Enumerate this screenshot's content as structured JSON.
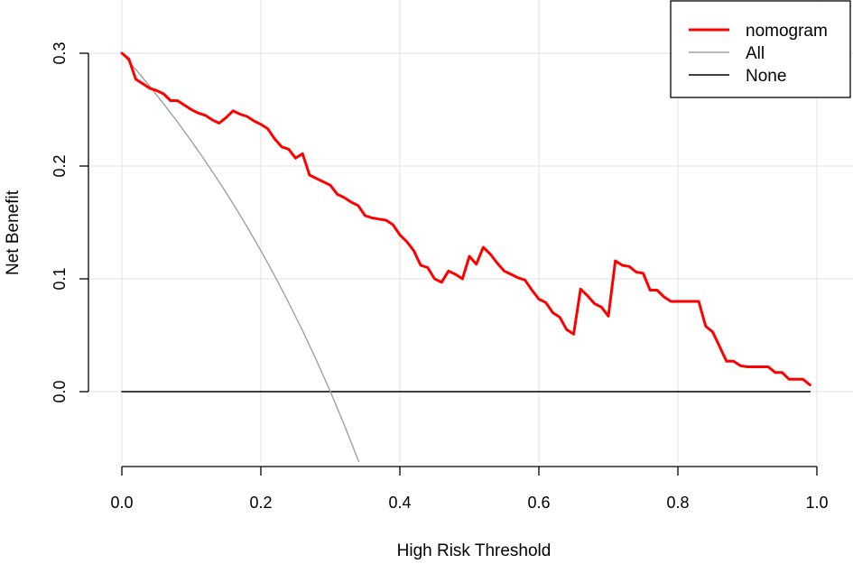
{
  "chart_data": {
    "type": "line",
    "title": "",
    "xlabel": "High Risk Threshold",
    "ylabel": "Net Benefit",
    "xlim": [
      0,
      1
    ],
    "ylim": [
      -0.065,
      0.335
    ],
    "xticks": [
      0,
      0.2,
      0.4,
      0.6,
      0.8,
      1.0
    ],
    "xtick_labels": [
      "0.0",
      "0.2",
      "0.4",
      "0.6",
      "0.8",
      "1.0"
    ],
    "yticks": [
      0,
      0.1,
      0.2,
      0.3
    ],
    "ytick_labels": [
      "0.0",
      "0.1",
      "0.2",
      "0.3"
    ],
    "grid": true,
    "legend_position": "top-right",
    "series": [
      {
        "name": "nomogram",
        "color": "#ff0000",
        "x": [
          0.0,
          0.01,
          0.02,
          0.03,
          0.04,
          0.05,
          0.06,
          0.07,
          0.08,
          0.09,
          0.1,
          0.11,
          0.12,
          0.13,
          0.14,
          0.15,
          0.16,
          0.17,
          0.18,
          0.19,
          0.2,
          0.21,
          0.22,
          0.23,
          0.24,
          0.25,
          0.26,
          0.27,
          0.28,
          0.29,
          0.3,
          0.31,
          0.32,
          0.33,
          0.34,
          0.35,
          0.36,
          0.37,
          0.38,
          0.39,
          0.4,
          0.41,
          0.42,
          0.43,
          0.44,
          0.45,
          0.46,
          0.47,
          0.48,
          0.49,
          0.5,
          0.51,
          0.52,
          0.53,
          0.54,
          0.55,
          0.56,
          0.57,
          0.58,
          0.59,
          0.6,
          0.61,
          0.62,
          0.63,
          0.64,
          0.65,
          0.66,
          0.67,
          0.68,
          0.69,
          0.7,
          0.71,
          0.72,
          0.73,
          0.74,
          0.75,
          0.76,
          0.77,
          0.78,
          0.79,
          0.8,
          0.81,
          0.82,
          0.83,
          0.84,
          0.85,
          0.86,
          0.87,
          0.88,
          0.89,
          0.9,
          0.91,
          0.92,
          0.93,
          0.94,
          0.95,
          0.96,
          0.97,
          0.98,
          0.99
        ],
        "y": [
          0.3,
          0.295,
          0.277,
          0.273,
          0.269,
          0.267,
          0.264,
          0.258,
          0.258,
          0.254,
          0.25,
          0.247,
          0.245,
          0.241,
          0.238,
          0.243,
          0.249,
          0.246,
          0.244,
          0.24,
          0.237,
          0.233,
          0.224,
          0.217,
          0.215,
          0.207,
          0.211,
          0.192,
          0.189,
          0.186,
          0.183,
          0.175,
          0.172,
          0.168,
          0.165,
          0.156,
          0.154,
          0.153,
          0.152,
          0.148,
          0.139,
          0.133,
          0.125,
          0.112,
          0.11,
          0.1,
          0.097,
          0.107,
          0.104,
          0.1,
          0.12,
          0.113,
          0.128,
          0.122,
          0.114,
          0.107,
          0.104,
          0.101,
          0.099,
          0.09,
          0.082,
          0.079,
          0.07,
          0.066,
          0.055,
          0.051,
          0.091,
          0.085,
          0.078,
          0.075,
          0.067,
          0.116,
          0.112,
          0.111,
          0.106,
          0.105,
          0.09,
          0.09,
          0.084,
          0.08,
          0.08,
          0.08,
          0.08,
          0.08,
          0.058,
          0.053,
          0.04,
          0.027,
          0.027,
          0.023,
          0.022,
          0.022,
          0.022,
          0.022,
          0.017,
          0.017,
          0.011,
          0.011,
          0.011,
          0.006
        ]
      },
      {
        "name": "All",
        "color": "#a0a0a0",
        "x": [
          0.0,
          0.02,
          0.04,
          0.06,
          0.08,
          0.1,
          0.12,
          0.14,
          0.16,
          0.18,
          0.2,
          0.22,
          0.24,
          0.26,
          0.28,
          0.3,
          0.32,
          0.34,
          0.345
        ],
        "y": [
          0.3,
          0.2857,
          0.2708,
          0.2553,
          0.2391,
          0.2222,
          0.2045,
          0.186,
          0.1667,
          0.1463,
          0.125,
          0.1026,
          0.0789,
          0.0541,
          0.0278,
          0.0,
          -0.0294,
          -0.0606,
          -0.0687
        ]
      },
      {
        "name": "None",
        "color": "#000000",
        "x": [
          0.0,
          0.99
        ],
        "y": [
          0.0,
          0.0
        ]
      }
    ]
  }
}
